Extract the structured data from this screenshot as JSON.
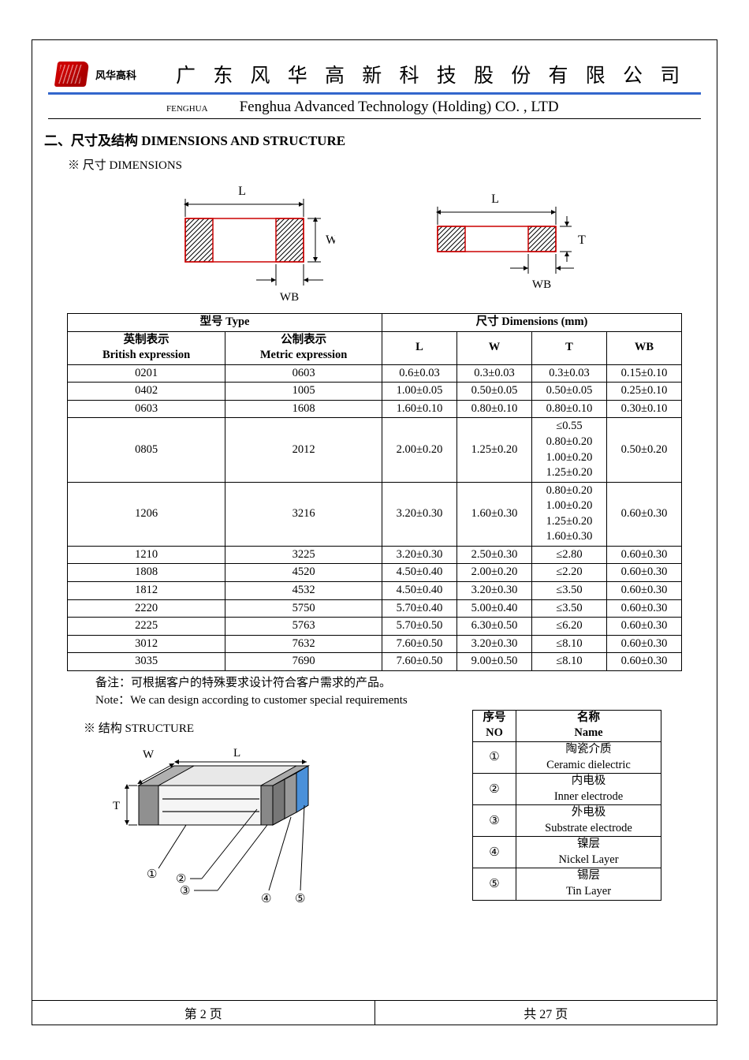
{
  "header": {
    "brand": "风华高科",
    "title_cn": "广 东 风 华 高 新 科 技 股 份 有 限 公 司",
    "fenghua_label": "FENGHUA",
    "title_en": "Fenghua Advanced Technology (Holding) CO. , LTD"
  },
  "section_title": "二、尺寸及结构   DIMENSIONS AND STRUCTURE",
  "dims_subtitle": "※ 尺寸 DIMENSIONS",
  "diagram": {
    "L": "L",
    "W": "W",
    "T": "T",
    "WB": "WB",
    "hatch_color": "#000000",
    "outline_color": "#cc0000",
    "arrow_color": "#000000",
    "hatch_spacing": 5
  },
  "table": {
    "head_type": "型号 Type",
    "head_dims": "尺寸     Dimensions     (mm)",
    "head_brit_cn": "英制表示",
    "head_brit_en": "British expression",
    "head_metr_cn": "公制表示",
    "head_metr_en": "Metric expression",
    "col_L": "L",
    "col_W": "W",
    "col_T": "T",
    "col_WB": "WB",
    "rows": [
      {
        "b": "0201",
        "m": "0603",
        "L": "0.6±0.03",
        "W": "0.3±0.03",
        "T": "0.3±0.03",
        "WB": "0.15±0.10"
      },
      {
        "b": "0402",
        "m": "1005",
        "L": "1.00±0.05",
        "W": "0.50±0.05",
        "T": "0.50±0.05",
        "WB": "0.25±0.10"
      },
      {
        "b": "0603",
        "m": "1608",
        "L": "1.60±0.10",
        "W": "0.80±0.10",
        "T": "0.80±0.10",
        "WB": "0.30±0.10"
      },
      {
        "b": "0805",
        "m": "2012",
        "L": "2.00±0.20",
        "W": "1.25±0.20",
        "T": "≤0.55\n0.80±0.20\n1.00±0.20\n1.25±0.20",
        "WB": "0.50±0.20"
      },
      {
        "b": "1206",
        "m": "3216",
        "L": "3.20±0.30",
        "W": "1.60±0.30",
        "T": "0.80±0.20\n1.00±0.20\n1.25±0.20\n1.60±0.30",
        "WB": "0.60±0.30"
      },
      {
        "b": "1210",
        "m": "3225",
        "L": "3.20±0.30",
        "W": "2.50±0.30",
        "T": "≤2.80",
        "WB": "0.60±0.30"
      },
      {
        "b": "1808",
        "m": "4520",
        "L": "4.50±0.40",
        "W": "2.00±0.20",
        "T": "≤2.20",
        "WB": "0.60±0.30"
      },
      {
        "b": "1812",
        "m": "4532",
        "L": "4.50±0.40",
        "W": "3.20±0.30",
        "T": "≤3.50",
        "WB": "0.60±0.30"
      },
      {
        "b": "2220",
        "m": "5750",
        "L": "5.70±0.40",
        "W": "5.00±0.40",
        "T": "≤3.50",
        "WB": "0.60±0.30"
      },
      {
        "b": "2225",
        "m": "5763",
        "L": "5.70±0.50",
        "W": "6.30±0.50",
        "T": "≤6.20",
        "WB": "0.60±0.30"
      },
      {
        "b": "3012",
        "m": "7632",
        "L": "7.60±0.50",
        "W": "3.20±0.30",
        "T": "≤8.10",
        "WB": "0.60±0.30"
      },
      {
        "b": "3035",
        "m": "7690",
        "L": "7.60±0.50",
        "W": "9.00±0.50",
        "T": "≤8.10",
        "WB": "0.60±0.30"
      }
    ]
  },
  "note_cn": "备注：可根据客户的特殊要求设计符合客户需求的产品。",
  "note_en": "Note：We can design according to customer special requirements",
  "structure_subtitle": "※ 结构 STRUCTURE",
  "structure_labels": {
    "W": "W",
    "L": "L",
    "T": "T"
  },
  "structure_colors": {
    "body": "#f0f0f0",
    "body_dark": "#bfbfbf",
    "end_cap": "#808080",
    "inner": "#cccccc",
    "nickel": "#a0a0a0",
    "tin": "#4a90d9",
    "outline": "#000000"
  },
  "structure_table": {
    "col_no_cn": "序号",
    "col_no_en": "NO",
    "col_name_cn": "名称",
    "col_name_en": "Name",
    "rows": [
      {
        "no": "①",
        "cn": "陶瓷介质",
        "en": "Ceramic   dielectric"
      },
      {
        "no": "②",
        "cn": "内电极",
        "en": "Inner   electrode"
      },
      {
        "no": "③",
        "cn": "外电极",
        "en": "Substrate   electrode"
      },
      {
        "no": "④",
        "cn": "镍层",
        "en": "Nickel Layer"
      },
      {
        "no": "⑤",
        "cn": "锡层",
        "en": "Tin Layer"
      }
    ]
  },
  "footer": {
    "left": "第   2   页",
    "right": "共  27  页"
  }
}
